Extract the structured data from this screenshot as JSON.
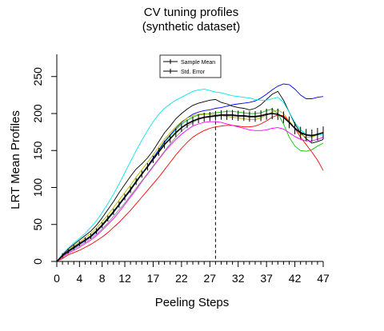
{
  "chart_data": {
    "type": "line",
    "title": "CV tuning profiles",
    "subtitle": "(synthetic dataset)",
    "xlabel": "Peeling Steps",
    "ylabel": "LRT Mean Profiles",
    "xlim": [
      0,
      47
    ],
    "ylim": [
      0,
      280
    ],
    "xticks": [
      "0",
      "4",
      "8",
      "12",
      "17",
      "22",
      "27",
      "32",
      "37",
      "42",
      "47"
    ],
    "xtick_values": [
      0,
      4,
      8,
      12,
      17,
      22,
      27,
      32,
      37,
      42,
      47
    ],
    "yticks": [
      "0",
      "50",
      "100",
      "150",
      "200",
      "250"
    ],
    "ytick_values": [
      0,
      50,
      100,
      150,
      200,
      250
    ],
    "vline_x": 28,
    "legend": {
      "placement": "top-center",
      "entries": [
        "Sample Mean",
        "Std. Error"
      ]
    },
    "mean": [
      0,
      8,
      14,
      19,
      24,
      29,
      34,
      41,
      49,
      58,
      67,
      77,
      87,
      97,
      108,
      118,
      128,
      138,
      148,
      158,
      166,
      174,
      181,
      186,
      190,
      193,
      195,
      196,
      197,
      198,
      198,
      198,
      197,
      197,
      196,
      196,
      197,
      199,
      200,
      199,
      195,
      188,
      180,
      174,
      171,
      170,
      172,
      174
    ],
    "series_colors": [
      "#000000",
      "#ff0000",
      "#00cd00",
      "#0000ff",
      "#00e5ee",
      "#ff00ff",
      "#b3b300",
      "#8c8c8c"
    ],
    "series": [
      {
        "color": "#000000",
        "values": [
          0,
          9,
          17,
          23,
          29,
          35,
          41,
          49,
          59,
          70,
          81,
          93,
          104,
          115,
          125,
          132,
          140,
          150,
          162,
          174,
          183,
          193,
          200,
          206,
          211,
          214,
          216,
          218,
          219,
          215,
          213,
          210,
          208,
          207,
          205,
          207,
          212,
          219,
          226,
          230,
          218,
          202,
          186,
          174,
          166,
          160,
          162,
          165
        ]
      },
      {
        "color": "#ff0000",
        "values": [
          0,
          4,
          9,
          12,
          15,
          19,
          23,
          28,
          33,
          39,
          46,
          53,
          61,
          69,
          78,
          87,
          96,
          105,
          114,
          124,
          134,
          144,
          153,
          161,
          168,
          173,
          177,
          180,
          182,
          183,
          184,
          184,
          183,
          182,
          182,
          183,
          186,
          190,
          195,
          198,
          197,
          190,
          180,
          168,
          158,
          148,
          137,
          123
        ]
      },
      {
        "color": "#00cd00",
        "values": [
          0,
          8,
          14,
          19,
          24,
          29,
          35,
          42,
          50,
          59,
          68,
          78,
          88,
          98,
          109,
          119,
          129,
          140,
          150,
          161,
          170,
          178,
          186,
          191,
          195,
          198,
          199,
          200,
          201,
          202,
          203,
          203,
          202,
          201,
          200,
          200,
          201,
          204,
          206,
          200,
          186,
          168,
          156,
          150,
          149,
          151,
          156,
          160
        ]
      },
      {
        "color": "#0000ff",
        "values": [
          0,
          7,
          13,
          18,
          23,
          28,
          33,
          40,
          48,
          57,
          66,
          76,
          86,
          96,
          107,
          118,
          129,
          140,
          151,
          162,
          171,
          180,
          188,
          194,
          199,
          202,
          204,
          205,
          207,
          208,
          210,
          212,
          213,
          214,
          215,
          217,
          221,
          226,
          232,
          237,
          240,
          239,
          233,
          225,
          220,
          220,
          222,
          223
        ]
      },
      {
        "color": "#00e5ee",
        "values": [
          0,
          10,
          18,
          25,
          31,
          38,
          46,
          55,
          66,
          78,
          91,
          105,
          120,
          135,
          150,
          164,
          177,
          189,
          199,
          207,
          213,
          218,
          222,
          226,
          230,
          232,
          233,
          231,
          229,
          228,
          226,
          224,
          223,
          222,
          221,
          219,
          218,
          218,
          220,
          222,
          215,
          202,
          188,
          178,
          172,
          170,
          171,
          172
        ]
      },
      {
        "color": "#ff00ff",
        "values": [
          0,
          6,
          11,
          15,
          19,
          24,
          29,
          35,
          42,
          50,
          58,
          67,
          77,
          87,
          97,
          108,
          118,
          128,
          138,
          148,
          157,
          165,
          172,
          178,
          183,
          186,
          188,
          189,
          189,
          188,
          186,
          184,
          182,
          180,
          178,
          177,
          177,
          178,
          180,
          181,
          179,
          174,
          169,
          165,
          163,
          163,
          165,
          168
        ]
      },
      {
        "color": "#b3b300",
        "values": [
          0,
          8,
          15,
          21,
          26,
          32,
          38,
          45,
          54,
          63,
          73,
          83,
          93,
          103,
          114,
          124,
          134,
          144,
          155,
          165,
          174,
          182,
          189,
          194,
          197,
          199,
          200,
          199,
          198,
          197,
          196,
          195,
          194,
          193,
          192,
          192,
          194,
          198,
          202,
          205,
          200,
          190,
          180,
          172,
          168,
          168,
          171,
          175
        ]
      },
      {
        "color": "#8c8c8c",
        "values": [
          0,
          7,
          12,
          17,
          21,
          26,
          31,
          37,
          44,
          52,
          61,
          70,
          79,
          89,
          99,
          109,
          119,
          129,
          139,
          149,
          159,
          168,
          176,
          183,
          188,
          192,
          194,
          195,
          196,
          197,
          197,
          197,
          196,
          196,
          195,
          195,
          196,
          198,
          200,
          199,
          195,
          188,
          181,
          175,
          172,
          171,
          172,
          174
        ]
      }
    ]
  }
}
